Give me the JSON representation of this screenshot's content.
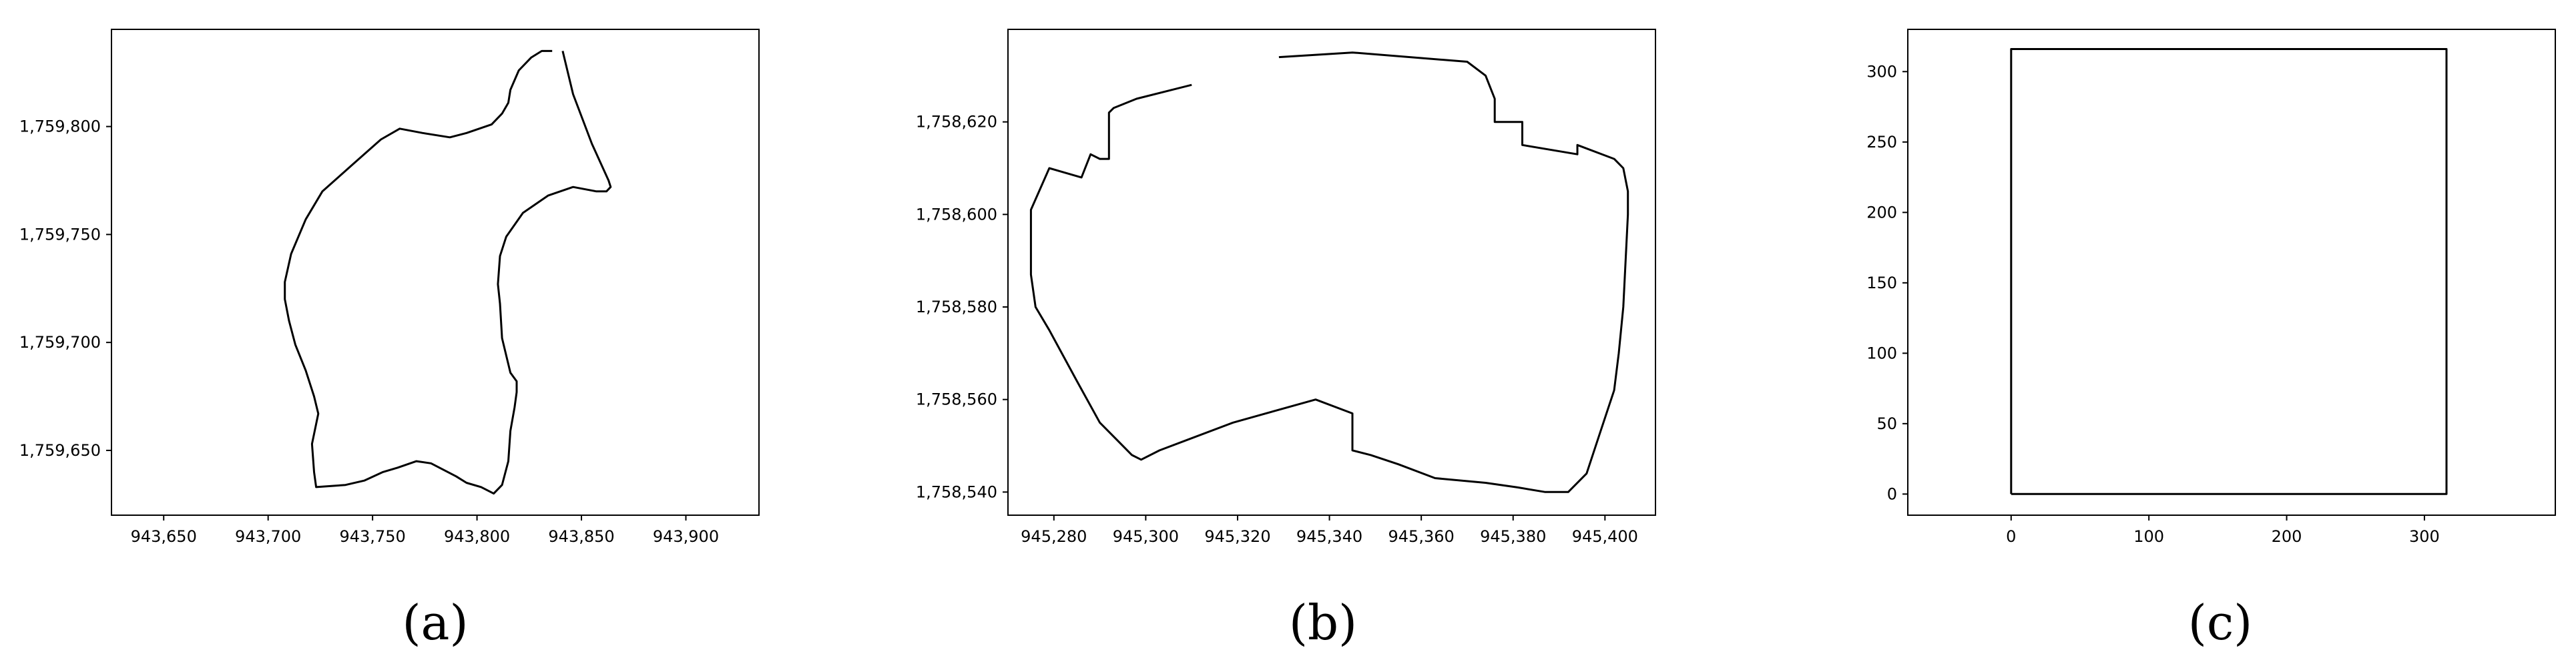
{
  "chart_data": [
    {
      "type": "line",
      "caption": "(a)",
      "title": "",
      "xlabel": "",
      "ylabel": "",
      "xlim": [
        943625,
        943935
      ],
      "ylim": [
        1759620,
        1759845
      ],
      "xticks": [
        943650,
        943700,
        943750,
        943800,
        943850,
        943900
      ],
      "xtick_labels": [
        "943,650",
        "943,700",
        "943,750",
        "943,800",
        "943,850",
        "943,900"
      ],
      "yticks": [
        1759650,
        1759700,
        1759750,
        1759800
      ],
      "ytick_labels": [
        "1,759,650",
        "1,759,700",
        "1,759,750",
        "1,759,800"
      ],
      "grid": false,
      "series": [
        {
          "color": "#000000",
          "x": [
            943841,
            943846,
            943855,
            943863,
            943864,
            943862,
            943857,
            943846,
            943834,
            943822,
            943814,
            943811,
            943810,
            943811,
            943812,
            943816,
            943819,
            943819,
            943818,
            943816,
            943815,
            943812,
            943808,
            943802,
            943795,
            943790,
            943778,
            943771,
            943762,
            943755,
            943746,
            943737,
            943723,
            943722,
            943721,
            943724,
            943722,
            943718,
            943713,
            943710,
            943708,
            943708,
            943711,
            943718,
            943726,
            943740,
            943754,
            943763,
            943774,
            943787,
            943795,
            943807,
            943812,
            943815,
            943816,
            943820,
            943826,
            943831,
            943836
          ],
          "y": [
            1759835,
            1759815,
            1759792,
            1759775,
            1759772,
            1759770,
            1759770,
            1759772,
            1759768,
            1759760,
            1759749,
            1759740,
            1759727,
            1759718,
            1759702,
            1759686,
            1759682,
            1759677,
            1759670,
            1759659,
            1759645,
            1759634,
            1759630,
            1759633,
            1759635,
            1759638,
            1759644,
            1759645,
            1759642,
            1759640,
            1759636,
            1759634,
            1759633,
            1759640,
            1759653,
            1759667,
            1759675,
            1759687,
            1759699,
            1759710,
            1759720,
            1759728,
            1759741,
            1759757,
            1759770,
            1759782,
            1759794,
            1759799,
            1759797,
            1759795,
            1759797,
            1759801,
            1759806,
            1759811,
            1759817,
            1759826,
            1759832,
            1759835,
            1759835
          ]
        }
      ]
    },
    {
      "type": "line",
      "caption": "(b)",
      "title": "",
      "xlabel": "",
      "ylabel": "",
      "xlim": [
        945270,
        945411
      ],
      "ylim": [
        1758535,
        1758640
      ],
      "xticks": [
        945280,
        945300,
        945320,
        945340,
        945360,
        945380,
        945400
      ],
      "xtick_labels": [
        "945,280",
        "945,300",
        "945,320",
        "945,340",
        "945,360",
        "945,380",
        "945,400"
      ],
      "yticks": [
        1758540,
        1758560,
        1758580,
        1758600,
        1758620
      ],
      "ytick_labels": [
        "1,758,540",
        "1,758,560",
        "1,758,580",
        "1,758,600",
        "1,758,620"
      ],
      "grid": false,
      "series": [
        {
          "color": "#000000",
          "x": [
            945329,
            945345,
            945370,
            945374,
            945376,
            945376,
            945382,
            945382,
            945394,
            945394,
            945402,
            945404,
            945405,
            945405,
            945404,
            945403,
            945402,
            945399,
            945396,
            945392,
            945389,
            945387,
            945381,
            945374,
            945363,
            945355,
            945349,
            945345,
            945345,
            945337,
            945319,
            945303,
            945299,
            945297,
            945294,
            945290,
            945285,
            945279,
            945276,
            945275,
            945275,
            945275,
            945279,
            945286,
            945288,
            945290,
            945292,
            945292,
            945293,
            945298,
            945310
          ],
          "y": [
            1758634,
            1758635,
            1758633,
            1758630,
            1758625,
            1758620,
            1758620,
            1758615,
            1758613,
            1758615,
            1758612,
            1758610,
            1758605,
            1758600,
            1758580,
            1758570,
            1758562,
            1758553,
            1758544,
            1758540,
            1758540,
            1758540,
            1758541,
            1758542,
            1758543,
            1758546,
            1758548,
            1758549,
            1758557,
            1758560,
            1758555,
            1758549,
            1758547,
            1758548,
            1758551,
            1758555,
            1758564,
            1758575,
            1758580,
            1758587,
            1758594,
            1758601,
            1758610,
            1758608,
            1758613,
            1758612,
            1758612,
            1758622,
            1758623,
            1758625,
            1758628
          ]
        }
      ]
    },
    {
      "type": "line",
      "caption": "(c)",
      "title": "",
      "xlabel": "",
      "ylabel": "",
      "xlim": [
        -75,
        395
      ],
      "ylim": [
        -15,
        330
      ],
      "xticks": [
        0,
        100,
        200,
        300
      ],
      "xtick_labels": [
        "0",
        "100",
        "200",
        "300"
      ],
      "yticks": [
        0,
        50,
        100,
        150,
        200,
        250,
        300
      ],
      "ytick_labels": [
        "0",
        "50",
        "100",
        "150",
        "200",
        "250",
        "300"
      ],
      "grid": false,
      "series": [
        {
          "color": "#000000",
          "x": [
            0,
            316,
            316,
            0,
            0
          ],
          "y": [
            0,
            0,
            316,
            316,
            0
          ]
        }
      ]
    }
  ]
}
